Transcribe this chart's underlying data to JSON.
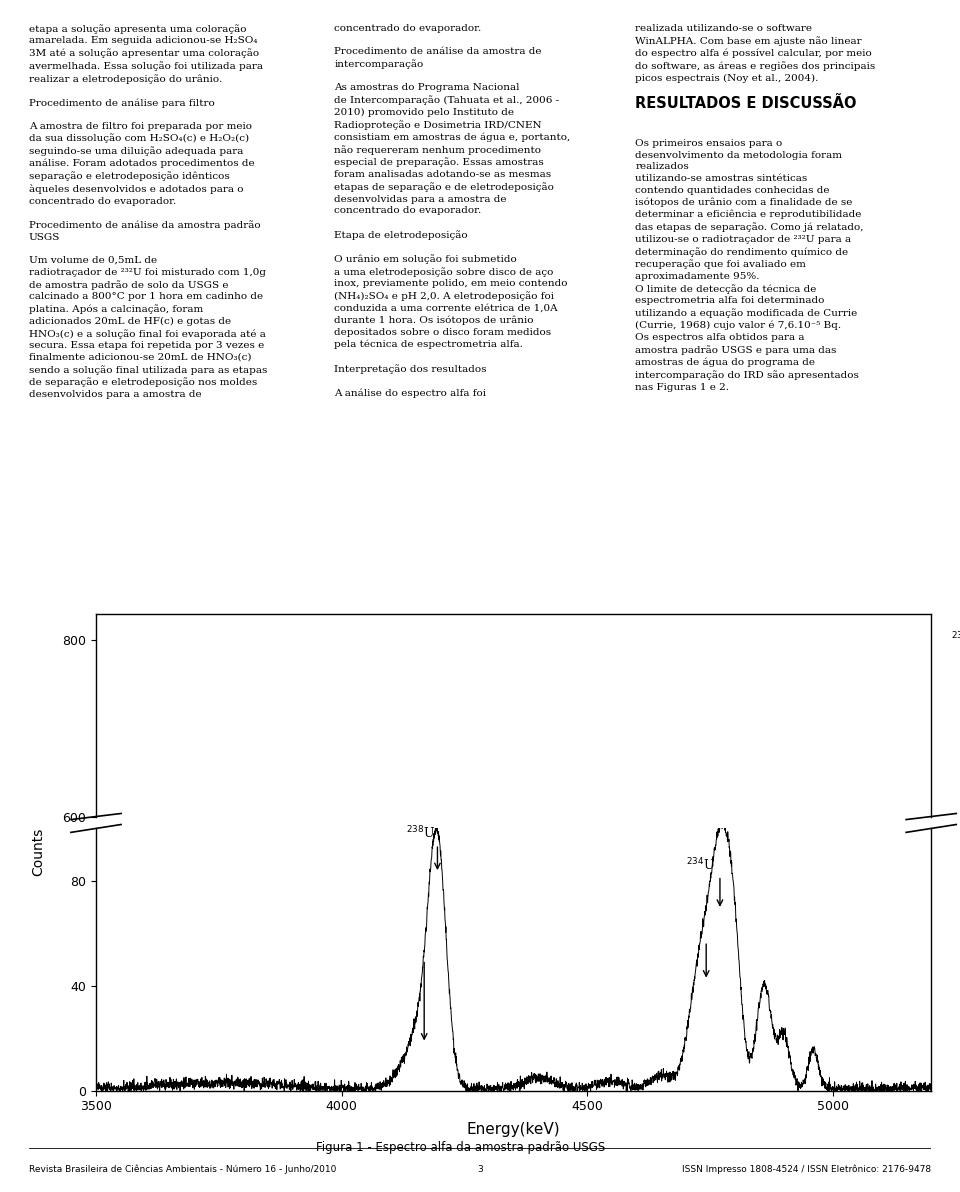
{
  "title": "Figura 1 - Espectro alfa da amostra padrão USGS",
  "xlabel": "Energy(keV)",
  "ylabel": "Counts",
  "xlim": [
    3500,
    5200
  ],
  "ylim_lower": [
    0,
    100
  ],
  "ylim_upper": [
    600,
    830
  ],
  "yticks_lower": [
    0,
    40,
    80
  ],
  "yticks_upper": [
    600,
    800
  ],
  "xticks": [
    3500,
    4000,
    4500,
    5000
  ],
  "background_color": "#ffffff",
  "line_color": "#000000",
  "footer_left": "Revista Brasileira de Ciências Ambientais - Número 16 - Junho/2010",
  "footer_center": "3",
  "footer_right": "ISSN Impresso 1808-4524 / ISSN Eletrônico: 2176-9478",
  "col1_text": "etapa a solução apresenta uma coloração\namarelada. Em seguida adicionou-se H₂SO₄\n3M até a solução apresentar uma coloração\navermelhada. Essa solução foi utilizada para\nrealizar a eletrodeposição do urânio.\n\nProcedimento de análise para filtro\n\nA amostra de filtro foi preparada por meio\nda sua dissolução com H₂SO₄(c) e H₂O₂(c)\nseguindo-se uma diluição adequada para\nanálise. Foram adotados procedimentos de\nseparação e eletrodeposição idênticos\nàqueles desenvolvidos e adotados para o\nconcentrado do evaporador.\n\nProcedimento de análise da amostra padrão\nUSGS\n\nUm volume de 0,5mL de\nradiotraçador de ²³²U foi misturado com 1,0g\nde amostra padrão de solo da USGS e\ncalcinado a 800°C por 1 hora em cadinho de\nplatina. Após a calcinação, foram\nadicionados 20mL de HF(c) e gotas de\nHNO₃(c) e a solução final foi evaporada até a\nsecura. Essa etapa foi repetida por 3 vezes e\nfinalmente adicionou-se 20mL de HNO₃(c)\nsendo a solução final utilizada para as etapas\nde separação e eletrodeposição nos moldes\ndesenvolvidos para a amostra de",
  "col2_text": "concentrado do evaporador.\n\nProcedimento de análise da amostra de\nintercomparação\n\nAs amostras do Programa Nacional\nde Intercomparação (Tahuata et al., 2006 -\n2010) promovido pelo Instituto de\nRadioproteção e Dosimetria IRD/CNEN\nconsistiam em amostras de água e, portanto,\nnão requereram nenhum procedimento\nespecial de preparação. Essas amostras\nforam analisadas adotando-se as mesmas\netapas de separação e de eletrodeposição\ndesenvolvidas para a amostra de\nconcentrado do evaporador.\n\nEtapa de eletrodeposição\n\nO urânio em solução foi submetido\na uma eletrodeposição sobre disco de aço\ninox, previamente polido, em meio contendo\n(NH₄)₂SO₄ e pH 2,0. A eletrodeposição foi\nconduzida a uma corrente elétrica de 1,0A\ndurante 1 hora. Os isótopos de urânio\ndepositados sobre o disco foram medidos\npela técnica de espectrometria alfa.\n\nInterpretação dos resultados\n\nA análise do espectro alfa foi",
  "col3_text_before": "realizada utilizando-se o software\nWinALPHA. Com base em ajuste não linear\ndo espectro alfa é possível calcular, por meio\ndo software, as áreas e regiões dos principais\npicos espectrais (Noy et al., 2004).\n",
  "col3_heading": "RESULTADOS E DISCUSSÃO",
  "col3_text_after": "\nOs primeiros ensaios para o\ndesenvolvimento da metodologia foram\nrealizados\nutilizando-se amostras sintéticas\ncontendo quantidades conhecidas de\nisótopos de urânio com a finalidade de se\ndeterminar a eficiência e reprodutibilidade\ndas etapas de separação. Como já relatado,\nutilizou-se o radiotraçador de ²³²U para a\ndeterminação do rendimento químico de\nrecuperação que foi avaliado em\naproximadamente 95%.\nO limite de detecção da técnica de\nespectrometria alfa foi determinado\nutilizando a equação modificada de Currie\n(Currie, 1968) cujo valor é 7,6.10⁻⁵ Bq.\nOs espectros alfa obtidos para a\namostra padrão USGS e para uma das\namostras de água do programa de\nintercomparação do IRD são apresentados\nnas Figuras 1 e 2."
}
